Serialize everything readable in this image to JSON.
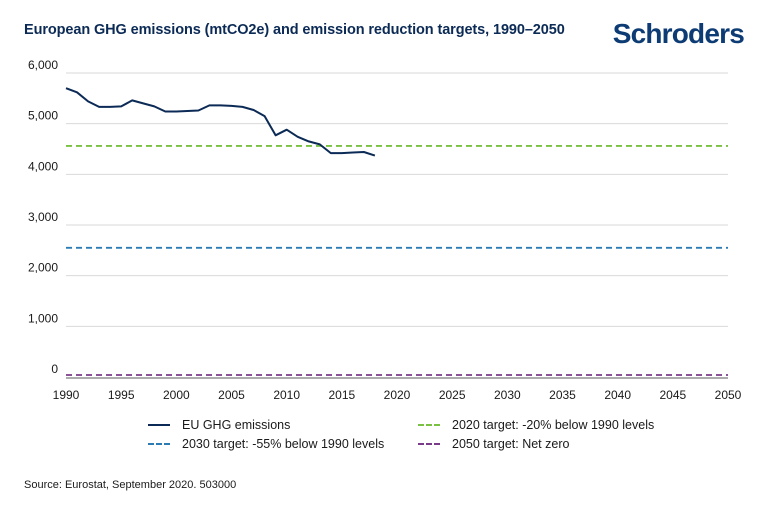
{
  "header": {
    "brand": "Schroders"
  },
  "source": "Source: Eurostat, September 2020. 503000",
  "colors": {
    "emissions": "#0b2a55",
    "target2020": "#7ac143",
    "target2030": "#2b7bb4",
    "target2050": "#7a3b8a",
    "grid": "#d9d9d9"
  },
  "chart_data": {
    "type": "line",
    "title": "European GHG emissions (mtCO2e) and emission reduction targets, 1990–2050",
    "xlabel": "",
    "ylabel": "",
    "xlim": [
      1990,
      2050
    ],
    "ylim": [
      0,
      6000
    ],
    "x_ticks": [
      1990,
      1995,
      2000,
      2005,
      2010,
      2015,
      2020,
      2025,
      2030,
      2035,
      2040,
      2045,
      2050
    ],
    "y_ticks": [
      0,
      1000,
      2000,
      3000,
      4000,
      5000,
      6000
    ],
    "y_tick_labels": [
      "0",
      "1,000",
      "2,000",
      "3,000",
      "4,000",
      "5,000",
      "6,000"
    ],
    "grid": true,
    "legend_position": "bottom",
    "series": [
      {
        "name": "EU GHG emissions",
        "style": "solid",
        "x": [
          1990,
          1991,
          1992,
          1993,
          1994,
          1995,
          1996,
          1997,
          1998,
          1999,
          2000,
          2001,
          2002,
          2003,
          2004,
          2005,
          2006,
          2007,
          2008,
          2009,
          2010,
          2011,
          2012,
          2013,
          2014,
          2015,
          2016,
          2017,
          2018
        ],
        "values": [
          5700,
          5620,
          5440,
          5330,
          5330,
          5340,
          5460,
          5400,
          5340,
          5240,
          5240,
          5250,
          5260,
          5360,
          5360,
          5350,
          5330,
          5270,
          5150,
          4770,
          4880,
          4740,
          4650,
          4590,
          4420,
          4420,
          4430,
          4440,
          4370
        ]
      },
      {
        "name": "2020 target: -20% below 1990 levels",
        "style": "dashed",
        "x": [
          1990,
          2050
        ],
        "values": [
          4560,
          4560
        ]
      },
      {
        "name": "2030 target: -55% below 1990 levels",
        "style": "dashed",
        "x": [
          1990,
          2050
        ],
        "values": [
          2550,
          2550
        ]
      },
      {
        "name": "2050 target: Net zero",
        "style": "dashed",
        "x": [
          1990,
          2050
        ],
        "values": [
          0,
          0
        ]
      }
    ]
  }
}
